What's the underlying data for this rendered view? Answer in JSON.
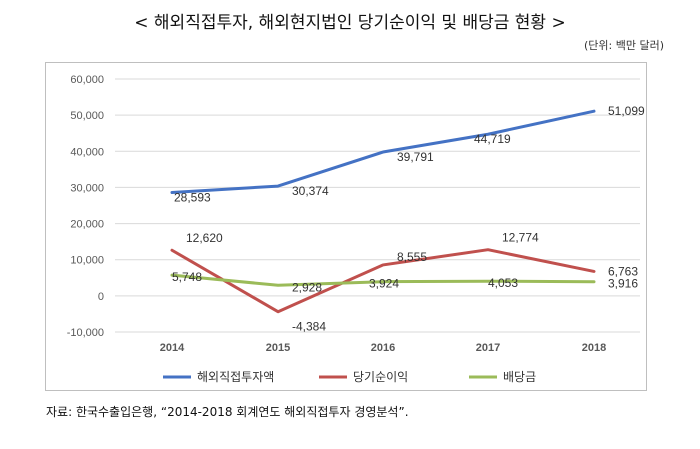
{
  "title": "< 해외직접투자, 해외현지법인 당기순이익 및 배당금 현황 >",
  "unit": "(단위: 백만 달러)",
  "source": "자료: 한국수출입은행, “2014-2018 회계연도 해외직접투자 경영분석”.",
  "colors": {
    "series_blue": "#4472C4",
    "series_red": "#C0504D",
    "series_green": "#9BBB59",
    "grid": "#d9d9d9"
  },
  "chart_data": {
    "type": "line",
    "categories": [
      "2014",
      "2015",
      "2016",
      "2017",
      "2018"
    ],
    "ylim": [
      -10000,
      60000
    ],
    "yticks": [
      -10000,
      0,
      10000,
      20000,
      30000,
      40000,
      50000,
      60000
    ],
    "ytick_labels": [
      "-10,000",
      "0",
      "10,000",
      "20,000",
      "30,000",
      "40,000",
      "50,000",
      "60,000"
    ],
    "grid": true,
    "legend_position": "bottom",
    "series": [
      {
        "name": "해외직접투자액",
        "color": "#4472C4",
        "values": [
          28593,
          30374,
          39791,
          44719,
          51099
        ],
        "labels": [
          "28,593",
          "30,374",
          "39,791",
          "44,719",
          "51,099"
        ]
      },
      {
        "name": "당기순이익",
        "color": "#C0504D",
        "values": [
          12620,
          -4384,
          8555,
          12774,
          6763
        ],
        "labels": [
          "12,620",
          "-4,384",
          "8,555",
          "12,774",
          "6,763"
        ]
      },
      {
        "name": "배당금",
        "color": "#9BBB59",
        "values": [
          5748,
          2928,
          3924,
          4053,
          3916
        ],
        "labels": [
          "5,748",
          "2,928",
          "3,924",
          "4,053",
          "3,916"
        ]
      }
    ]
  }
}
